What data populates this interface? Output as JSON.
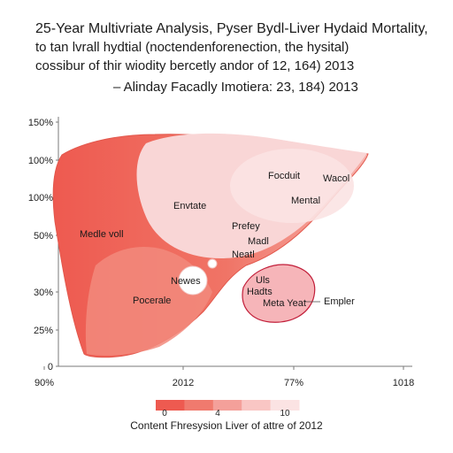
{
  "title_lines": [
    "25-Year Multivriate Analysis, Pyser Bydl-Liver Hydaid Mortality,",
    "to tan lvrall hydtial (noctendenforenection,  the hysital)",
    "cossibur of thir wiodity bercetly andor of 12, 164) 2013",
    "– Alinday Facadly Imotiera: 23, 184) 2013"
  ],
  "chart_data": {
    "type": "area",
    "title": "25-Year Multivriate Analysis, Pyser Bydl-Liver Hydaid Mortality,",
    "y_ticks": [
      "150%",
      "100%",
      "100%",
      "50%",
      "30%",
      "25%",
      "0"
    ],
    "x_ticks": [
      "90%",
      "2012",
      "77%",
      "1018"
    ],
    "regions": [
      {
        "label": "Medle voll",
        "color": "#ee5a50"
      },
      {
        "label": "Envtate",
        "color": "#f9d6d6"
      },
      {
        "label": "Focduit",
        "color": "#f9dada"
      },
      {
        "label": "Wacol",
        "color": "#f9dada"
      },
      {
        "label": "Mental",
        "color": "#f9dada"
      },
      {
        "label": "Prefey",
        "color": "#f9dada"
      },
      {
        "label": "Madl",
        "color": "#f9dada"
      },
      {
        "label": "Neatl",
        "color": "#f9dada"
      },
      {
        "label": "Newes",
        "color": "#ffffff"
      },
      {
        "label": "Pocerale",
        "color": "#f2897c"
      },
      {
        "label": "Uls",
        "color": "#f4a3a8"
      },
      {
        "label": "Hadts",
        "color": "#f4a3a8"
      },
      {
        "label": "Meta Yeat",
        "color": "#f4a3a8"
      },
      {
        "label": "Empler",
        "color": "#ffffff"
      }
    ],
    "legend": {
      "ticks": [
        "0",
        "4",
        "10"
      ],
      "colors": [
        "#ee5a50",
        "#f07a6e",
        "#f4a09a",
        "#f9c6c4",
        "#fbe3e3"
      ]
    },
    "caption": "Content Fhresysion Liver of attre of 2012"
  }
}
